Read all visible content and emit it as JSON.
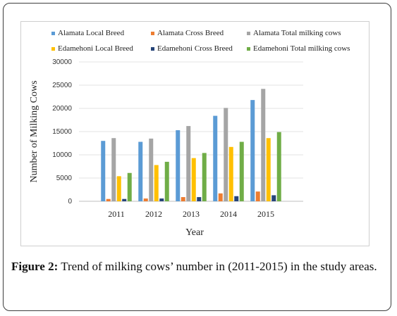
{
  "caption": {
    "label": "Figure 2:",
    "text": "Trend of milking cows’ number in (2011-2015) in the study areas."
  },
  "chart_data": {
    "type": "bar",
    "xlabel": "Year",
    "ylabel": "Number of Milking Cows",
    "ylim": [
      0,
      30000
    ],
    "yticks": [
      "30000",
      "25000",
      "20000",
      "15000",
      "10000",
      "5000",
      "0"
    ],
    "categories": [
      "2011",
      "2012",
      "2013",
      "2014",
      "2015"
    ],
    "grid": true,
    "legend_position": "top",
    "series": [
      {
        "name": "Alamata  Local Breed",
        "color": "#5b9bd5",
        "values": [
          13000,
          12800,
          15300,
          18400,
          21800
        ]
      },
      {
        "name": "Alamata  Cross Breed",
        "color": "#ed7d31",
        "values": [
          500,
          600,
          900,
          1700,
          2100
        ]
      },
      {
        "name": "Alamata  Total milking    cows",
        "color": "#a5a5a5",
        "values": [
          13600,
          13500,
          16200,
          20100,
          24200
        ]
      },
      {
        "name": "Edamehoni  Local Breed",
        "color": "#ffc000",
        "values": [
          5400,
          7800,
          9300,
          11700,
          13600
        ]
      },
      {
        "name": "Edamehoni  Cross  Breed",
        "color": "#264478",
        "values": [
          500,
          600,
          900,
          1100,
          1300
        ]
      },
      {
        "name": "Edamehoni  Total milking cows",
        "color": "#70ad47",
        "values": [
          6100,
          8500,
          10400,
          12800,
          14900
        ]
      }
    ]
  }
}
